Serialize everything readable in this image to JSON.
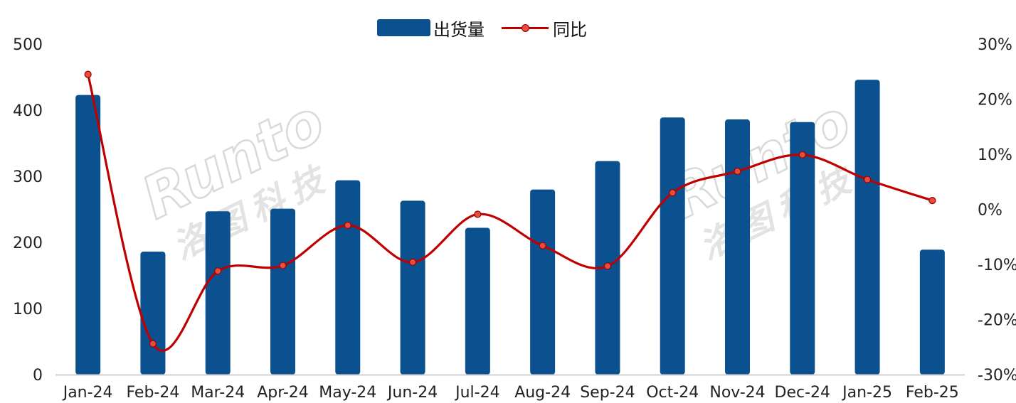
{
  "chart_data": {
    "type": "bar",
    "categories": [
      "Jan-24",
      "Feb-24",
      "Mar-24",
      "Apr-24",
      "May-24",
      "Jun-24",
      "Jul-24",
      "Aug-24",
      "Sep-24",
      "Oct-24",
      "Nov-24",
      "Dec-24",
      "Jan-25",
      "Feb-25"
    ],
    "series": [
      {
        "name": "出货量",
        "type": "bar",
        "axis": "left",
        "color": "#0b5190",
        "values": [
          423,
          186,
          247,
          251,
          294,
          263,
          222,
          280,
          323,
          389,
          386,
          382,
          446,
          189
        ]
      },
      {
        "name": "同比",
        "type": "line",
        "axis": "right",
        "color": "#c00000",
        "marker_color": "#e74c3c",
        "values": [
          24.5,
          -24.4,
          -11.2,
          -10.2,
          -2.9,
          -9.6,
          -0.9,
          -6.6,
          -10.3,
          3.0,
          6.9,
          9.9,
          5.4,
          1.6
        ]
      }
    ],
    "left_axis": {
      "ylim": [
        0,
        500
      ],
      "ticks": [
        0,
        100,
        200,
        300,
        400,
        500
      ],
      "tick_labels": [
        "0",
        "100",
        "200",
        "300",
        "400",
        "500"
      ]
    },
    "right_axis": {
      "ylim": [
        -30,
        30
      ],
      "ticks": [
        -30,
        -20,
        -10,
        0,
        10,
        20,
        30
      ],
      "tick_labels": [
        "-30%",
        "-20%",
        "-10%",
        "0%",
        "10%",
        "20%",
        "30%"
      ]
    },
    "legend": {
      "placement": "top-center",
      "entries": [
        "出货量",
        "同比"
      ]
    },
    "grid": false,
    "watermark": {
      "text": "Runto",
      "subtext": "洛图科技"
    }
  }
}
